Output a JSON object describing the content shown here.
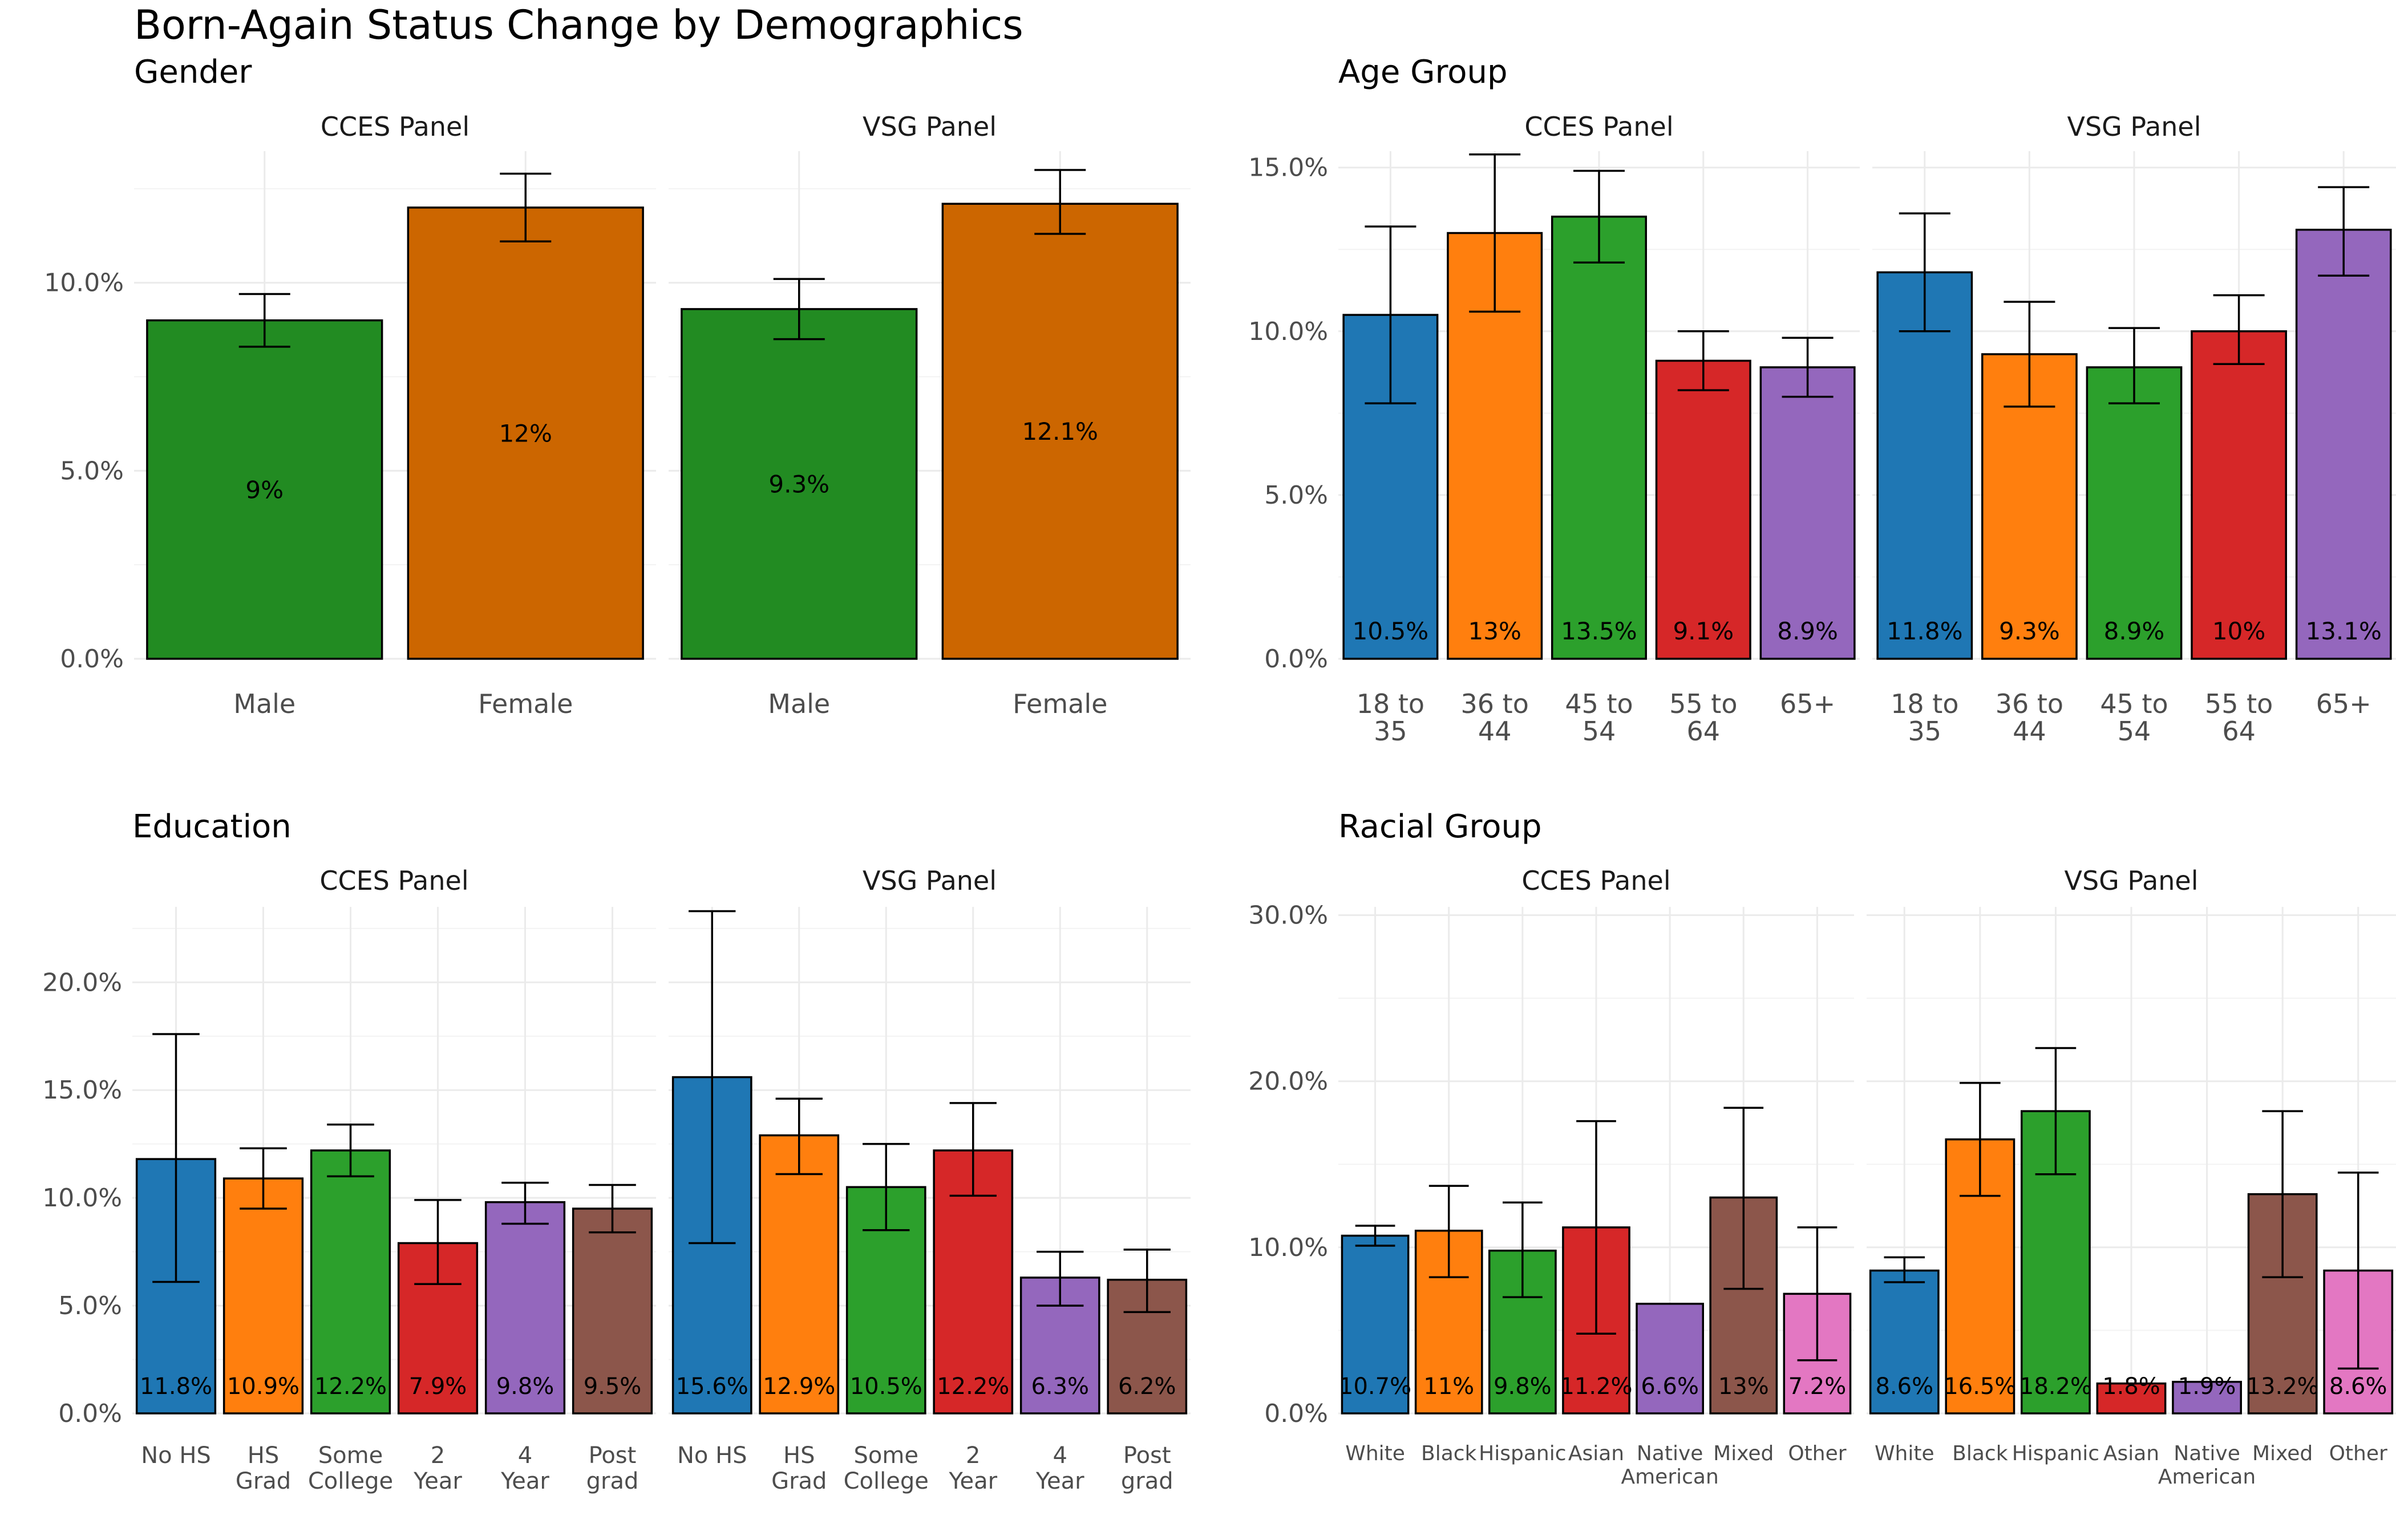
{
  "title": "Born-Again Status Change by Demographics",
  "chart_data": [
    {
      "type": "bar",
      "title": "Gender",
      "categories": [
        "Male",
        "Female"
      ],
      "colors": [
        "#228B22",
        "#CC6600"
      ],
      "ylim": [
        0,
        13.5
      ],
      "yticks": [
        0,
        5,
        10
      ],
      "ytick_labels": [
        "0.0%",
        "5.0%",
        "10.0%"
      ],
      "label_position": "middle",
      "grid": true,
      "panels": [
        {
          "name": "CCES Panel",
          "values": [
            9.0,
            12.0
          ],
          "labels": [
            "9%",
            "12%"
          ],
          "error_low": [
            8.3,
            11.1
          ],
          "error_high": [
            9.7,
            12.9
          ]
        },
        {
          "name": "VSG Panel",
          "values": [
            9.3,
            12.1
          ],
          "labels": [
            "9.3%",
            "12.1%"
          ],
          "error_low": [
            8.5,
            11.3
          ],
          "error_high": [
            10.1,
            13.0
          ]
        }
      ]
    },
    {
      "type": "bar",
      "title": "Age Group",
      "categories": [
        "18 to 35",
        "36 to 44",
        "45 to 54",
        "55 to 64",
        "65+"
      ],
      "tick_lines": [
        [
          "18 to",
          "35"
        ],
        [
          "36 to",
          "44"
        ],
        [
          "45 to",
          "54"
        ],
        [
          "55 to",
          "64"
        ],
        [
          "65+"
        ]
      ],
      "colors": [
        "#1F77B4",
        "#FF7F0E",
        "#2CA02C",
        "#D62728",
        "#9467BD"
      ],
      "ylim": [
        0,
        15.5
      ],
      "yticks": [
        0,
        5,
        10,
        15
      ],
      "ytick_labels": [
        "0.0%",
        "5.0%",
        "10.0%",
        "15.0%"
      ],
      "label_position": "low",
      "grid": true,
      "panels": [
        {
          "name": "CCES Panel",
          "values": [
            10.5,
            13.0,
            13.5,
            9.1,
            8.9
          ],
          "labels": [
            "10.5%",
            "13%",
            "13.5%",
            "9.1%",
            "8.9%"
          ],
          "error_low": [
            7.8,
            10.6,
            12.1,
            8.2,
            8.0
          ],
          "error_high": [
            13.2,
            15.4,
            14.9,
            10.0,
            9.8
          ]
        },
        {
          "name": "VSG Panel",
          "values": [
            11.8,
            9.3,
            8.9,
            10.0,
            13.1
          ],
          "labels": [
            "11.8%",
            "9.3%",
            "8.9%",
            "10%",
            "13.1%"
          ],
          "error_low": [
            10.0,
            7.7,
            7.8,
            9.0,
            11.7
          ],
          "error_high": [
            13.6,
            10.9,
            10.1,
            11.1,
            14.4
          ]
        }
      ]
    },
    {
      "type": "bar",
      "title": "Education",
      "categories": [
        "No HS",
        "HS Grad",
        "Some College",
        "2 Year",
        "4 Year",
        "Post grad"
      ],
      "tick_lines": [
        [
          "No HS"
        ],
        [
          "HS",
          "Grad"
        ],
        [
          "Some",
          "College"
        ],
        [
          "2",
          "Year"
        ],
        [
          "4",
          "Year"
        ],
        [
          "Post",
          "grad"
        ]
      ],
      "colors": [
        "#1F77B4",
        "#FF7F0E",
        "#2CA02C",
        "#D62728",
        "#9467BD",
        "#8C564B"
      ],
      "ylim": [
        0,
        23.5
      ],
      "yticks": [
        0,
        5,
        10,
        15,
        20
      ],
      "ytick_labels": [
        "0.0%",
        "5.0%",
        "10.0%",
        "15.0%",
        "20.0%"
      ],
      "label_position": "low",
      "grid": true,
      "panels": [
        {
          "name": "CCES Panel",
          "values": [
            11.8,
            10.9,
            12.2,
            7.9,
            9.8,
            9.5
          ],
          "labels": [
            "11.8%",
            "10.9%",
            "12.2%",
            "7.9%",
            "9.8%",
            "9.5%"
          ],
          "error_low": [
            6.1,
            9.5,
            11.0,
            6.0,
            8.8,
            8.4
          ],
          "error_high": [
            17.6,
            12.3,
            13.4,
            9.9,
            10.7,
            10.6
          ]
        },
        {
          "name": "VSG Panel",
          "values": [
            15.6,
            12.9,
            10.5,
            12.2,
            6.3,
            6.2
          ],
          "labels": [
            "15.6%",
            "12.9%",
            "10.5%",
            "12.2%",
            "6.3%",
            "6.2%"
          ],
          "error_low": [
            7.9,
            11.1,
            8.5,
            10.1,
            5.0,
            4.7
          ],
          "error_high": [
            23.3,
            14.6,
            12.5,
            14.4,
            7.5,
            7.6
          ]
        }
      ]
    },
    {
      "type": "bar",
      "title": "Racial Group",
      "categories": [
        "White",
        "Black",
        "Hispanic",
        "Asian",
        "Native American",
        "Mixed",
        "Other"
      ],
      "tick_lines": [
        [
          "White"
        ],
        [
          "Black"
        ],
        [
          "Hispanic"
        ],
        [
          "Asian"
        ],
        [
          "Native",
          "American"
        ],
        [
          "Mixed"
        ],
        [
          "Other"
        ]
      ],
      "colors": [
        "#1F77B4",
        "#FF7F0E",
        "#2CA02C",
        "#D62728",
        "#9467BD",
        "#8C564B",
        "#E377C2"
      ],
      "ylim": [
        0,
        30.5
      ],
      "yticks": [
        0,
        10,
        20,
        30
      ],
      "ytick_labels": [
        "0.0%",
        "10.0%",
        "20.0%",
        "30.0%"
      ],
      "label_position": "low",
      "grid": true,
      "panels": [
        {
          "name": "CCES Panel",
          "values": [
            10.7,
            11.0,
            9.8,
            11.2,
            6.6,
            13.0,
            7.2
          ],
          "labels": [
            "10.7%",
            "11%",
            "9.8%",
            "11.2%",
            "6.6%",
            "13%",
            "7.2%"
          ],
          "error_low": [
            10.1,
            8.2,
            7.0,
            4.8,
            null,
            7.5,
            3.2
          ],
          "error_high": [
            11.3,
            13.7,
            12.7,
            17.6,
            null,
            18.4,
            11.2
          ]
        },
        {
          "name": "VSG Panel",
          "values": [
            8.6,
            16.5,
            18.2,
            1.8,
            1.9,
            13.2,
            8.6
          ],
          "labels": [
            "8.6%",
            "16.5%",
            "18.2%",
            "1.8%",
            "1.9%",
            "13.2%",
            "8.6%"
          ],
          "error_low": [
            7.9,
            13.1,
            14.4,
            null,
            null,
            8.2,
            2.7
          ],
          "error_high": [
            9.4,
            19.9,
            22.0,
            null,
            null,
            18.2,
            14.5
          ]
        }
      ]
    }
  ]
}
